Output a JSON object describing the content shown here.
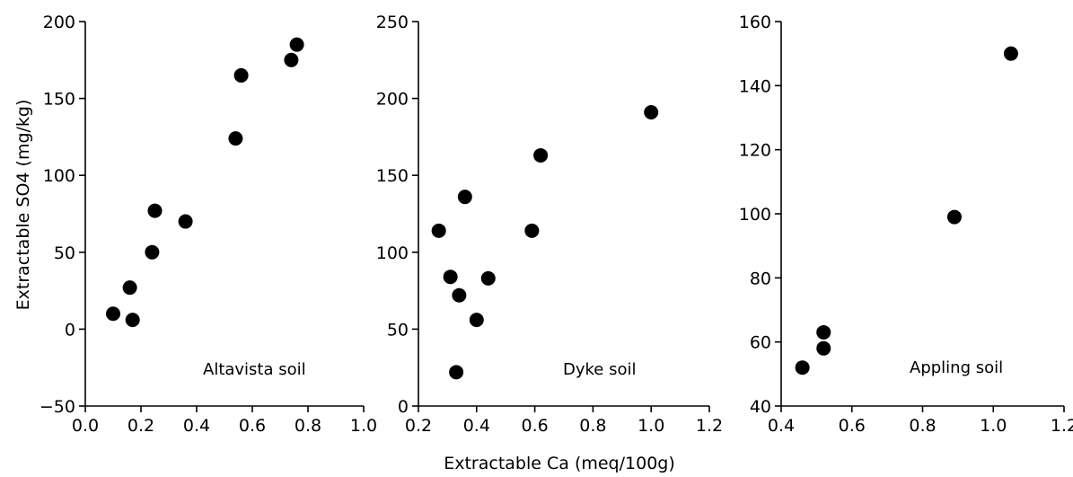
{
  "figure": {
    "ylabel": "Extractable SO4 (mg/kg)",
    "xlabel": "Extractable Ca (meq/100g)"
  },
  "chart_data": [
    {
      "type": "scatter",
      "title": "",
      "panel_label": "Altavista soil",
      "xlim": [
        0.0,
        1.0
      ],
      "ylim": [
        -50,
        200
      ],
      "xticks": [
        0.0,
        0.2,
        0.4,
        0.6,
        0.8,
        1.0
      ],
      "xtick_labels": [
        "0.0",
        "0.2",
        "0.4",
        "0.6",
        "0.8",
        "1.0"
      ],
      "yticks": [
        -50,
        0,
        50,
        100,
        150,
        200
      ],
      "ytick_labels": [
        "−50",
        "0",
        "50",
        "100",
        "150",
        "200"
      ],
      "grid": false,
      "x": [
        0.1,
        0.16,
        0.17,
        0.24,
        0.25,
        0.36,
        0.54,
        0.56,
        0.74,
        0.76
      ],
      "y": [
        10,
        27,
        6,
        50,
        77,
        70,
        124,
        165,
        175,
        185
      ]
    },
    {
      "type": "scatter",
      "title": "",
      "panel_label": "Dyke soil",
      "xlim": [
        0.2,
        1.2
      ],
      "ylim": [
        0,
        250
      ],
      "xticks": [
        0.2,
        0.4,
        0.6,
        0.8,
        1.0,
        1.2
      ],
      "xtick_labels": [
        "0.2",
        "0.4",
        "0.6",
        "0.8",
        "1.0",
        "1.2"
      ],
      "yticks": [
        0,
        50,
        100,
        150,
        200,
        250
      ],
      "ytick_labels": [
        "0",
        "50",
        "100",
        "150",
        "200",
        "250"
      ],
      "grid": false,
      "x": [
        0.27,
        0.31,
        0.33,
        0.34,
        0.36,
        0.4,
        0.44,
        0.59,
        0.62,
        1.0
      ],
      "y": [
        114,
        84,
        22,
        72,
        136,
        56,
        83,
        114,
        163,
        191
      ]
    },
    {
      "type": "scatter",
      "title": "",
      "panel_label": "Appling soil",
      "xlim": [
        0.4,
        1.2
      ],
      "ylim": [
        40,
        160
      ],
      "xticks": [
        0.4,
        0.6,
        0.8,
        1.0,
        1.2
      ],
      "xtick_labels": [
        "0.4",
        "0.6",
        "0.8",
        "1.0",
        "1.2"
      ],
      "yticks": [
        40,
        60,
        80,
        100,
        120,
        140,
        160
      ],
      "ytick_labels": [
        "40",
        "60",
        "80",
        "100",
        "120",
        "140",
        "160"
      ],
      "grid": false,
      "x": [
        0.46,
        0.52,
        0.52,
        0.89,
        1.05
      ],
      "y": [
        52,
        58,
        63,
        99,
        150
      ]
    }
  ]
}
